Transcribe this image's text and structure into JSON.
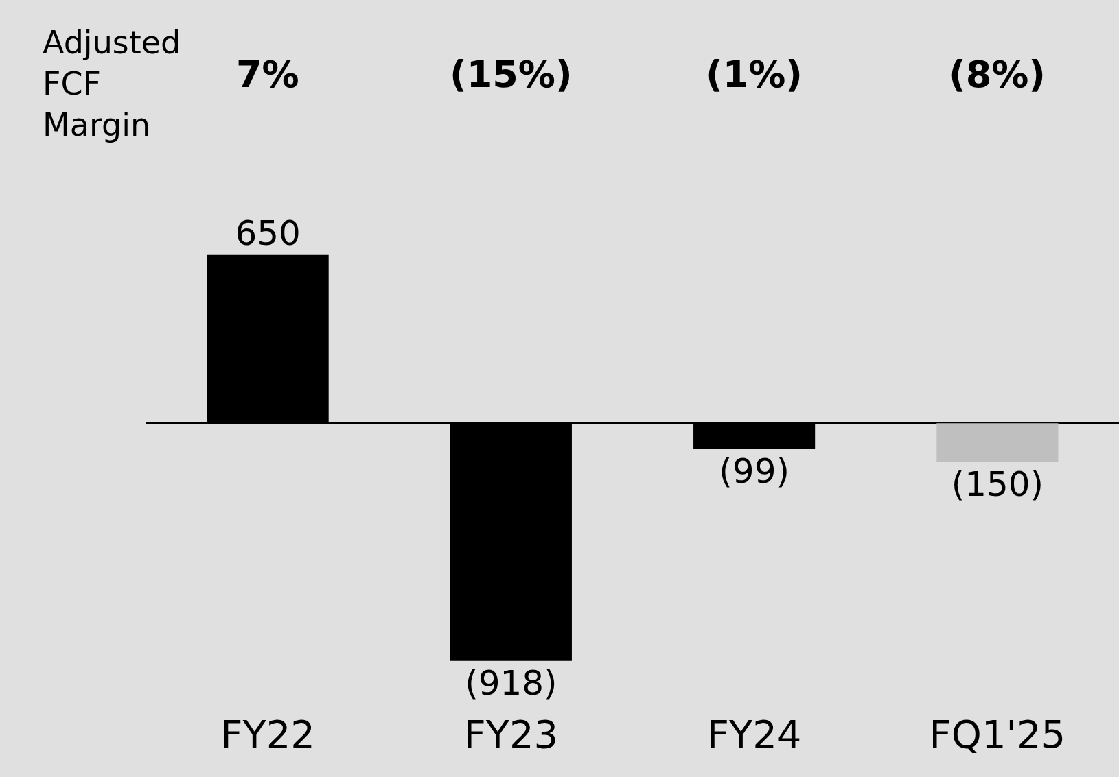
{
  "chart_data": {
    "type": "bar",
    "categories": [
      "FY22",
      "FY23",
      "FY24",
      "FQ1'25"
    ],
    "values": [
      650,
      -918,
      -99,
      -150
    ],
    "colors": [
      "#000000",
      "#000000",
      "#000000",
      "#bfbfbf"
    ],
    "value_labels": [
      "650",
      "(918)",
      "(99)",
      "(150)"
    ],
    "annotations": [
      "Adjusted FCF Margin",
      "7%",
      "(15%)",
      "(1%)",
      "(8%)"
    ],
    "grid": false
  }
}
